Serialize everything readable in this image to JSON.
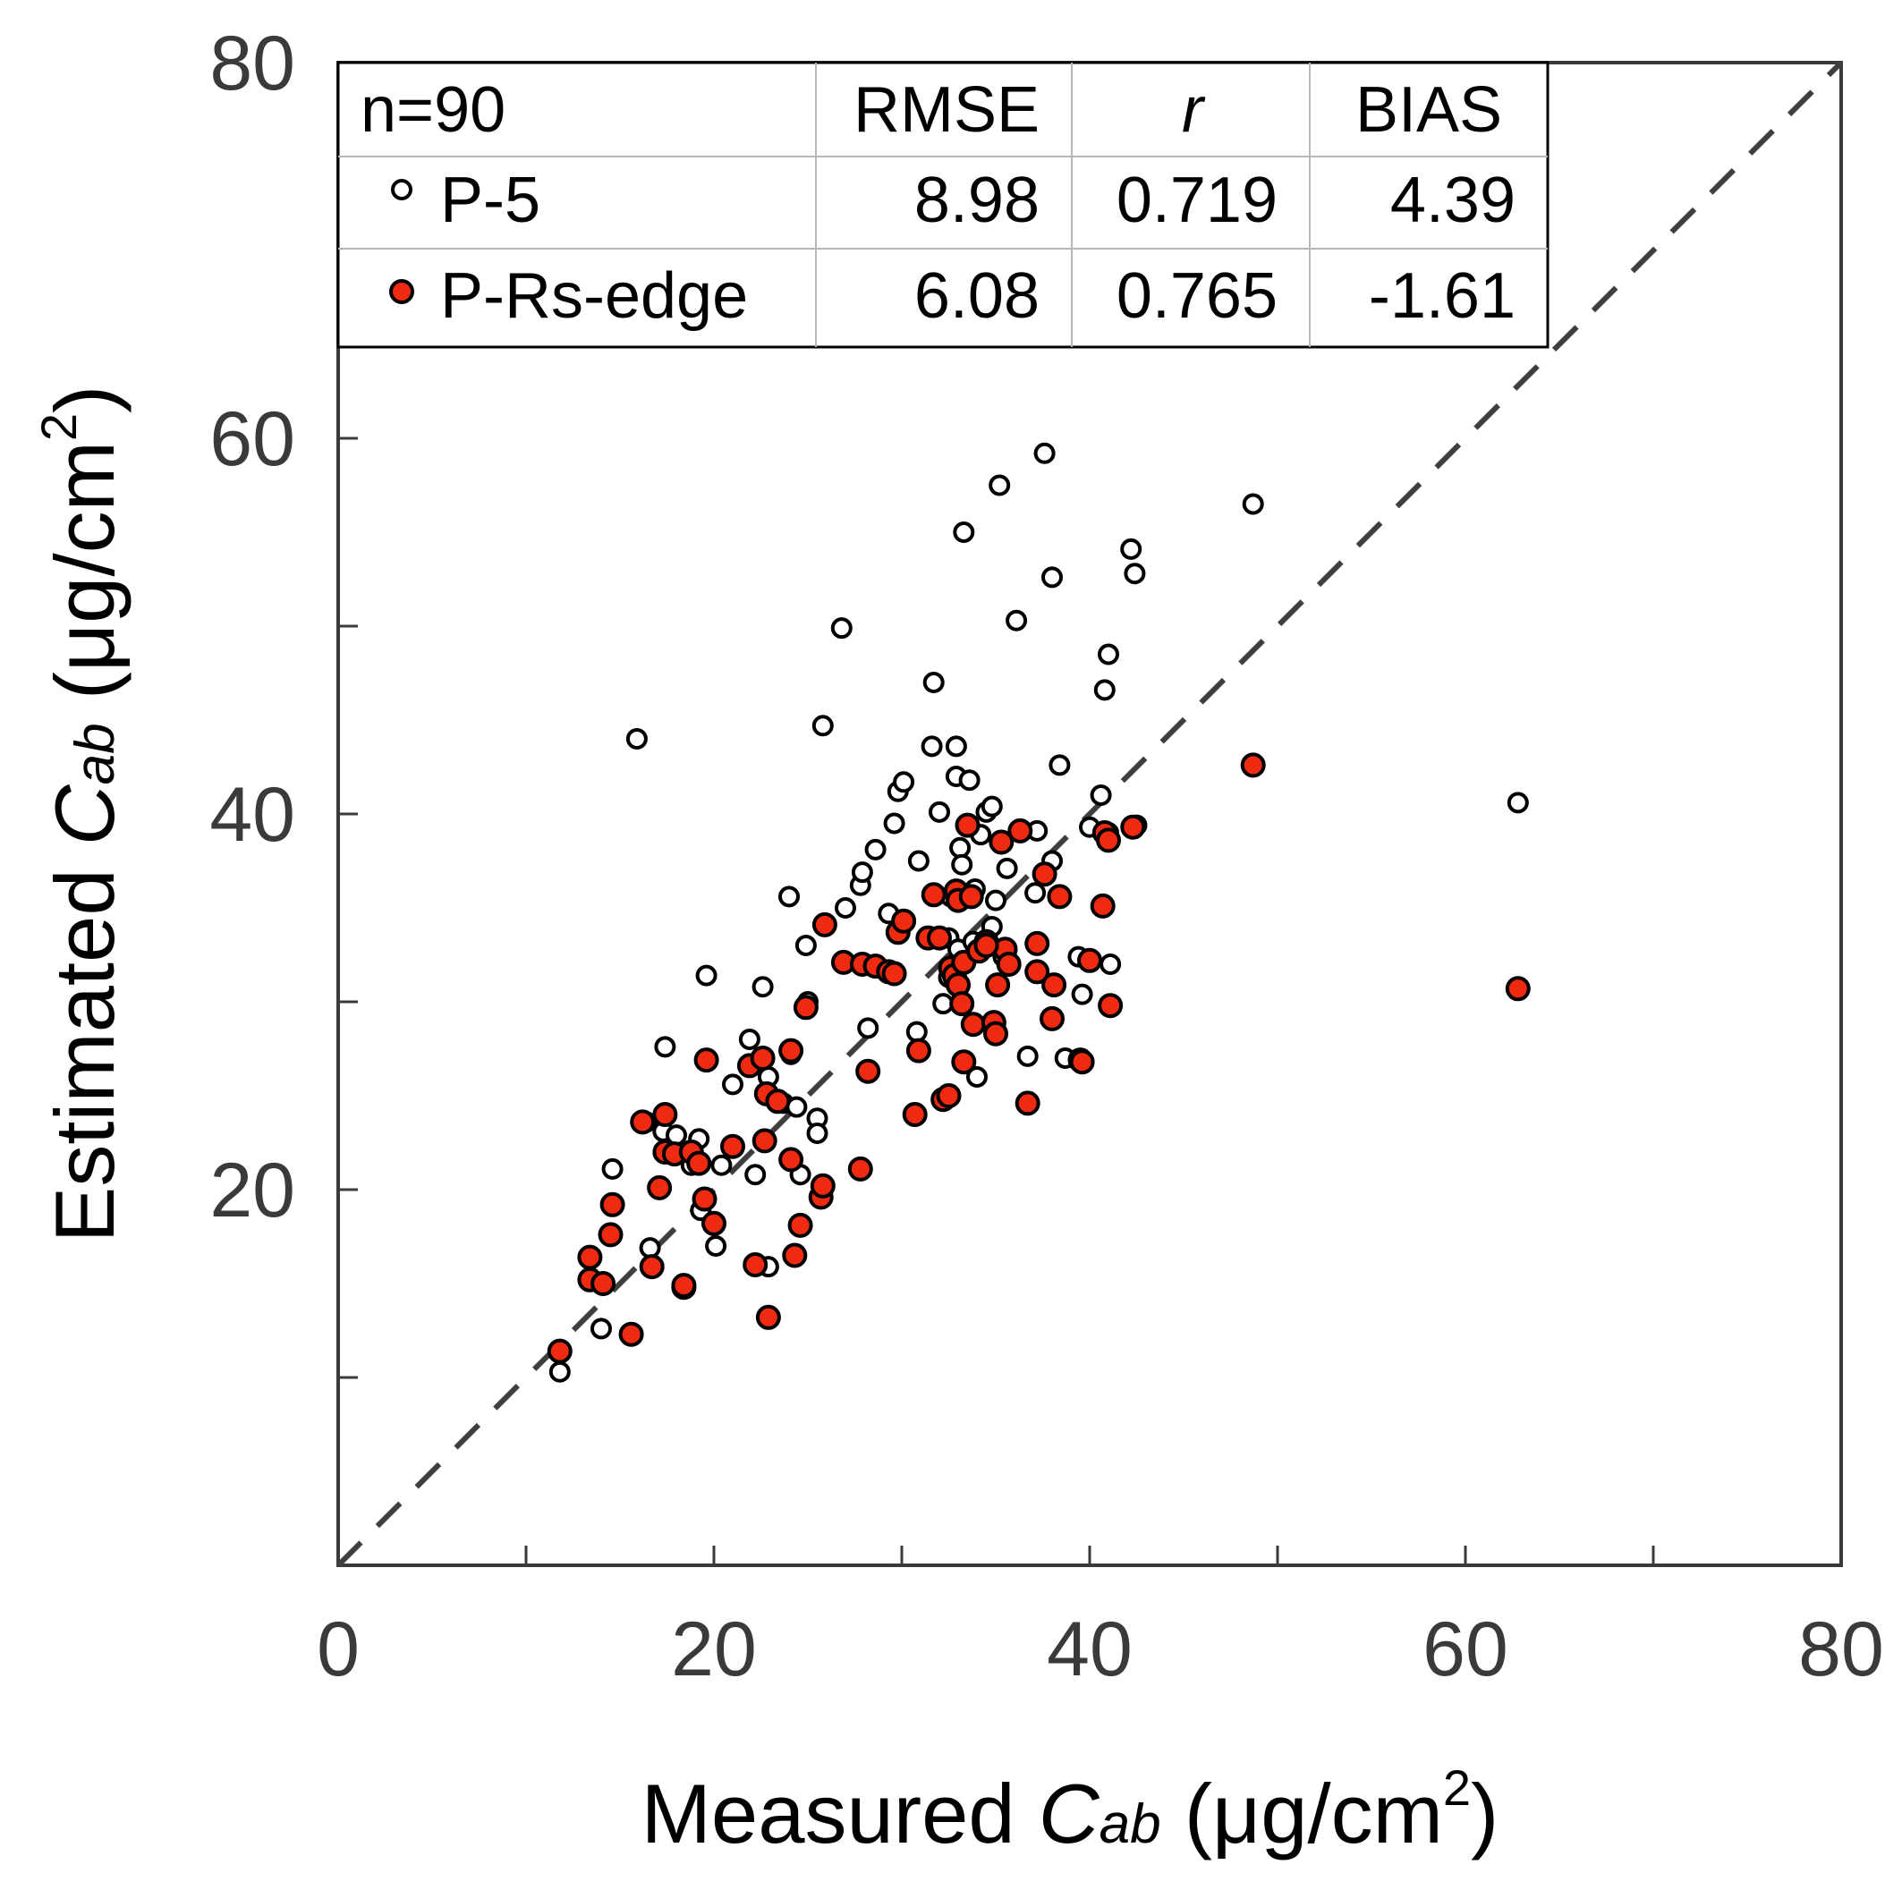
{
  "chart_data": {
    "type": "scatter",
    "xlabel": {
      "prefix": "Measured ",
      "var": "C",
      "sub": "ab",
      "unit": " (μg/cm",
      "sup": "2",
      "close": ")"
    },
    "ylabel": {
      "prefix": "Estimated ",
      "var": "C",
      "sub": "ab",
      "unit": " (μg/cm",
      "sup": "2",
      "close": ")"
    },
    "xlim": [
      0,
      80
    ],
    "ylim": [
      0,
      80
    ],
    "x_ticks": [
      0,
      20,
      40,
      60,
      80
    ],
    "y_ticks": [
      20,
      40,
      60,
      80
    ],
    "x_tick_labels": [
      "0",
      "20",
      "40",
      "60",
      "80"
    ],
    "y_tick_labels": [
      "20",
      "40",
      "60",
      "80"
    ],
    "x_minor_ticks": [
      10,
      30,
      50,
      70
    ],
    "y_minor_ticks": [
      10,
      30,
      50,
      70
    ],
    "reference_line": {
      "name": "1:1 line",
      "from": [
        0,
        0
      ],
      "to": [
        80,
        80
      ],
      "style": "dashed",
      "color": "#3f3f3f"
    },
    "stats_table": {
      "headers": [
        "n=90",
        "RMSE",
        "r",
        "BIAS"
      ],
      "rows": [
        {
          "label": "P-5",
          "marker": "open",
          "rmse": "8.98",
          "r": "0.719",
          "bias": "4.39"
        },
        {
          "label": "P-Rs-edge",
          "marker": "filled",
          "rmse": "6.08",
          "r": "0.765",
          "bias": "-1.61"
        }
      ]
    },
    "series": [
      {
        "name": "P-5",
        "marker": "open",
        "fill": "#ffffff",
        "stroke": "#000000",
        "points": [
          [
            11.8,
            10.3
          ],
          [
            14.0,
            12.6
          ],
          [
            15.9,
            44.0
          ],
          [
            14.6,
            21.1
          ],
          [
            16.4,
            23.6
          ],
          [
            16.6,
            16.9
          ],
          [
            17.3,
            23.1
          ],
          [
            17.4,
            27.6
          ],
          [
            18.0,
            22.9
          ],
          [
            18.8,
            21.3
          ],
          [
            19.2,
            22.7
          ],
          [
            19.6,
            31.4
          ],
          [
            19.3,
            18.9
          ],
          [
            20.1,
            17.0
          ],
          [
            20.4,
            21.3
          ],
          [
            21.0,
            25.6
          ],
          [
            21.9,
            28.0
          ],
          [
            22.2,
            20.8
          ],
          [
            22.6,
            30.8
          ],
          [
            22.9,
            15.9
          ],
          [
            22.9,
            26.0
          ],
          [
            23.7,
            24.6
          ],
          [
            24.0,
            35.6
          ],
          [
            24.1,
            27.2
          ],
          [
            24.4,
            24.4
          ],
          [
            24.6,
            20.8
          ],
          [
            24.9,
            33.0
          ],
          [
            25.5,
            23.8
          ],
          [
            25.5,
            23.0
          ],
          [
            25.8,
            44.7
          ],
          [
            26.8,
            49.9
          ],
          [
            27.8,
            36.2
          ],
          [
            27.9,
            36.9
          ],
          [
            28.2,
            28.6
          ],
          [
            28.6,
            38.1
          ],
          [
            29.3,
            34.7
          ],
          [
            29.6,
            39.5
          ],
          [
            29.8,
            41.2
          ],
          [
            30.1,
            41.7
          ],
          [
            30.9,
            37.5
          ],
          [
            30.8,
            28.4
          ],
          [
            31.7,
            47.0
          ],
          [
            31.6,
            43.6
          ],
          [
            32.0,
            40.1
          ],
          [
            32.2,
            29.9
          ],
          [
            32.5,
            31.3
          ],
          [
            32.5,
            33.4
          ],
          [
            32.6,
            35.6
          ],
          [
            32.9,
            43.6
          ],
          [
            32.9,
            42.0
          ],
          [
            33.0,
            32.8
          ],
          [
            33.1,
            38.2
          ],
          [
            33.2,
            37.3
          ],
          [
            33.3,
            55.0
          ],
          [
            33.6,
            41.8
          ],
          [
            33.8,
            33.2
          ],
          [
            33.9,
            36.0
          ],
          [
            34.2,
            38.9
          ],
          [
            34.5,
            40.1
          ],
          [
            34.8,
            40.4
          ],
          [
            34.8,
            34.0
          ],
          [
            35.0,
            35.4
          ],
          [
            35.2,
            57.5
          ],
          [
            35.6,
            37.1
          ],
          [
            36.1,
            50.3
          ],
          [
            36.7,
            27.1
          ],
          [
            37.1,
            35.8
          ],
          [
            37.2,
            39.1
          ],
          [
            37.6,
            59.2
          ],
          [
            38.0,
            52.6
          ],
          [
            38.0,
            37.5
          ],
          [
            38.4,
            42.6
          ],
          [
            39.4,
            32.4
          ],
          [
            39.6,
            30.4
          ],
          [
            40.0,
            39.3
          ],
          [
            40.6,
            41.0
          ],
          [
            40.8,
            46.6
          ],
          [
            41.0,
            48.5
          ],
          [
            41.0,
            39.0
          ],
          [
            41.1,
            32.0
          ],
          [
            42.2,
            54.1
          ],
          [
            42.4,
            52.8
          ],
          [
            42.5,
            39.4
          ],
          [
            48.7,
            56.5
          ],
          [
            62.8,
            40.6
          ],
          [
            25.0,
            30.0
          ],
          [
            27.0,
            35.0
          ],
          [
            34.0,
            26.0
          ],
          [
            38.7,
            27.0
          ],
          [
            35.4,
            32.4
          ]
        ]
      },
      {
        "name": "P-Rs-edge",
        "marker": "filled",
        "fill": "#ee2a10",
        "stroke": "#000000",
        "points": [
          [
            11.8,
            11.4
          ],
          [
            13.4,
            16.4
          ],
          [
            13.4,
            15.2
          ],
          [
            14.1,
            15.0
          ],
          [
            14.5,
            17.6
          ],
          [
            14.6,
            19.2
          ],
          [
            15.6,
            12.3
          ],
          [
            16.2,
            23.6
          ],
          [
            16.7,
            15.9
          ],
          [
            17.1,
            20.1
          ],
          [
            17.4,
            22.0
          ],
          [
            17.4,
            24.0
          ],
          [
            17.9,
            21.9
          ],
          [
            18.4,
            14.8
          ],
          [
            18.4,
            14.9
          ],
          [
            18.8,
            22.0
          ],
          [
            19.2,
            21.4
          ],
          [
            19.5,
            19.5
          ],
          [
            19.6,
            26.9
          ],
          [
            20.0,
            18.2
          ],
          [
            21.0,
            22.3
          ],
          [
            21.9,
            26.6
          ],
          [
            22.2,
            16.0
          ],
          [
            22.6,
            27.0
          ],
          [
            22.7,
            22.6
          ],
          [
            22.8,
            25.1
          ],
          [
            22.9,
            13.2
          ],
          [
            23.4,
            24.7
          ],
          [
            24.1,
            27.4
          ],
          [
            24.1,
            21.6
          ],
          [
            24.3,
            16.5
          ],
          [
            24.6,
            18.1
          ],
          [
            24.9,
            29.7
          ],
          [
            25.7,
            19.6
          ],
          [
            25.8,
            20.2
          ],
          [
            25.9,
            34.1
          ],
          [
            26.9,
            32.1
          ],
          [
            27.8,
            21.1
          ],
          [
            27.9,
            32.0
          ],
          [
            28.2,
            26.3
          ],
          [
            28.6,
            31.9
          ],
          [
            29.3,
            31.6
          ],
          [
            29.6,
            31.5
          ],
          [
            29.8,
            33.7
          ],
          [
            30.1,
            34.3
          ],
          [
            30.7,
            24.0
          ],
          [
            30.9,
            27.4
          ],
          [
            31.4,
            33.4
          ],
          [
            31.7,
            35.7
          ],
          [
            32.2,
            24.8
          ],
          [
            32.5,
            25.0
          ],
          [
            32.6,
            31.8
          ],
          [
            32.8,
            31.4
          ],
          [
            32.9,
            35.9
          ],
          [
            33.0,
            35.4
          ],
          [
            33.0,
            30.9
          ],
          [
            33.2,
            29.9
          ],
          [
            33.3,
            32.1
          ],
          [
            33.3,
            26.8
          ],
          [
            33.5,
            39.4
          ],
          [
            33.7,
            35.6
          ],
          [
            33.8,
            28.8
          ],
          [
            34.1,
            32.7
          ],
          [
            34.5,
            33.2
          ],
          [
            34.9,
            28.9
          ],
          [
            35.0,
            28.3
          ],
          [
            35.1,
            30.9
          ],
          [
            35.3,
            38.5
          ],
          [
            35.5,
            32.8
          ],
          [
            35.7,
            32.0
          ],
          [
            36.3,
            39.1
          ],
          [
            36.7,
            24.6
          ],
          [
            37.2,
            33.1
          ],
          [
            37.2,
            31.6
          ],
          [
            37.6,
            36.8
          ],
          [
            38.0,
            29.1
          ],
          [
            38.1,
            30.9
          ],
          [
            38.4,
            35.6
          ],
          [
            39.5,
            26.9
          ],
          [
            39.6,
            26.8
          ],
          [
            40.0,
            32.2
          ],
          [
            40.7,
            35.1
          ],
          [
            40.8,
            39.0
          ],
          [
            41.0,
            38.6
          ],
          [
            41.1,
            29.8
          ],
          [
            42.3,
            39.3
          ],
          [
            48.7,
            42.6
          ],
          [
            62.8,
            30.7
          ],
          [
            34.5,
            33.0
          ],
          [
            32.0,
            33.4
          ]
        ]
      }
    ]
  }
}
